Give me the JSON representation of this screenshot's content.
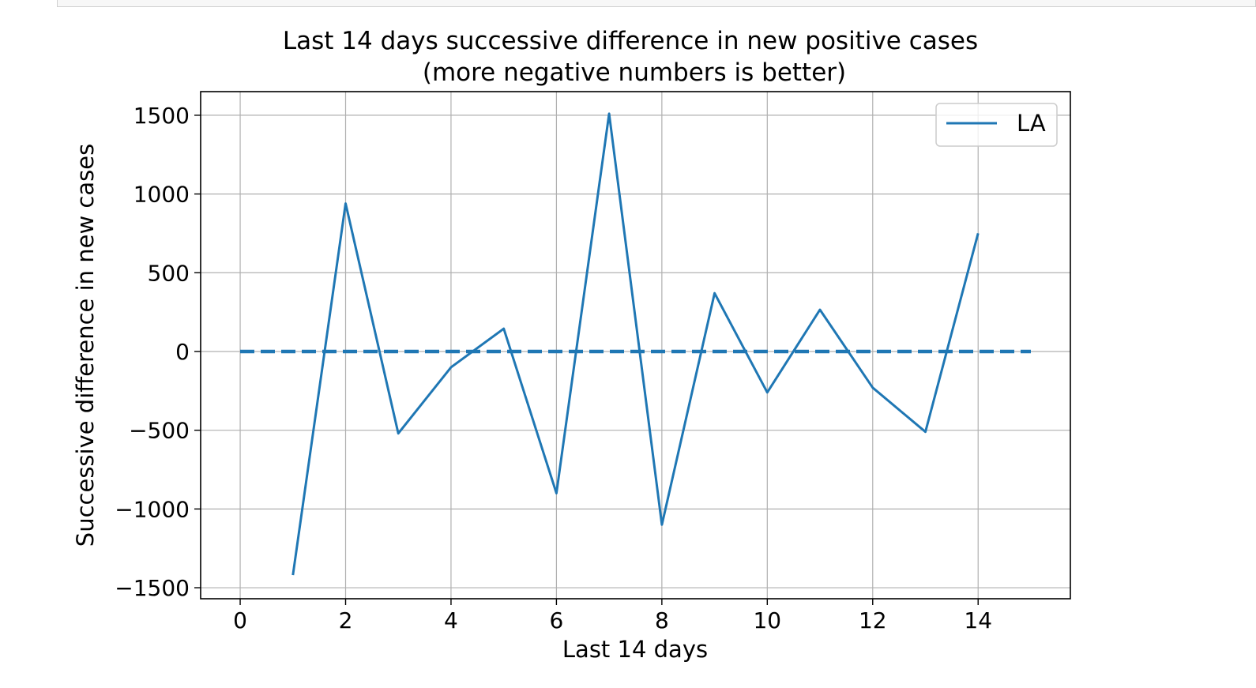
{
  "chart_data": {
    "type": "line",
    "title_line1": "Last 14 days successive difference in new positive cases",
    "title_line2": "(more negative numbers is better)",
    "xlabel": "Last 14 days",
    "ylabel": "Successive difference in new cases",
    "xlim": [
      -0.75,
      15.75
    ],
    "ylim": [
      -1570,
      1650
    ],
    "x_ticks": [
      0,
      2,
      4,
      6,
      8,
      10,
      12,
      14
    ],
    "y_ticks": [
      -1500,
      -1000,
      -500,
      0,
      500,
      1000,
      1500
    ],
    "x_tick_labels": [
      "0",
      "2",
      "4",
      "6",
      "8",
      "10",
      "12",
      "14"
    ],
    "y_tick_labels": [
      "−1500",
      "−1000",
      "−500",
      "0",
      "500",
      "1000",
      "1500"
    ],
    "grid": true,
    "legend_position": "top-right",
    "series": [
      {
        "name": "LA",
        "color": "#1f77b4",
        "style": "solid",
        "x": [
          1,
          2,
          3,
          4,
          5,
          6,
          7,
          8,
          9,
          10,
          11,
          12,
          13,
          14
        ],
        "values": [
          -1420,
          940,
          -520,
          -100,
          145,
          -900,
          1510,
          -1100,
          370,
          -260,
          265,
          -230,
          -510,
          750
        ]
      },
      {
        "color": "#1f77b4",
        "style": "dashed",
        "x": [
          0,
          15
        ],
        "values": [
          0,
          0
        ]
      }
    ]
  }
}
